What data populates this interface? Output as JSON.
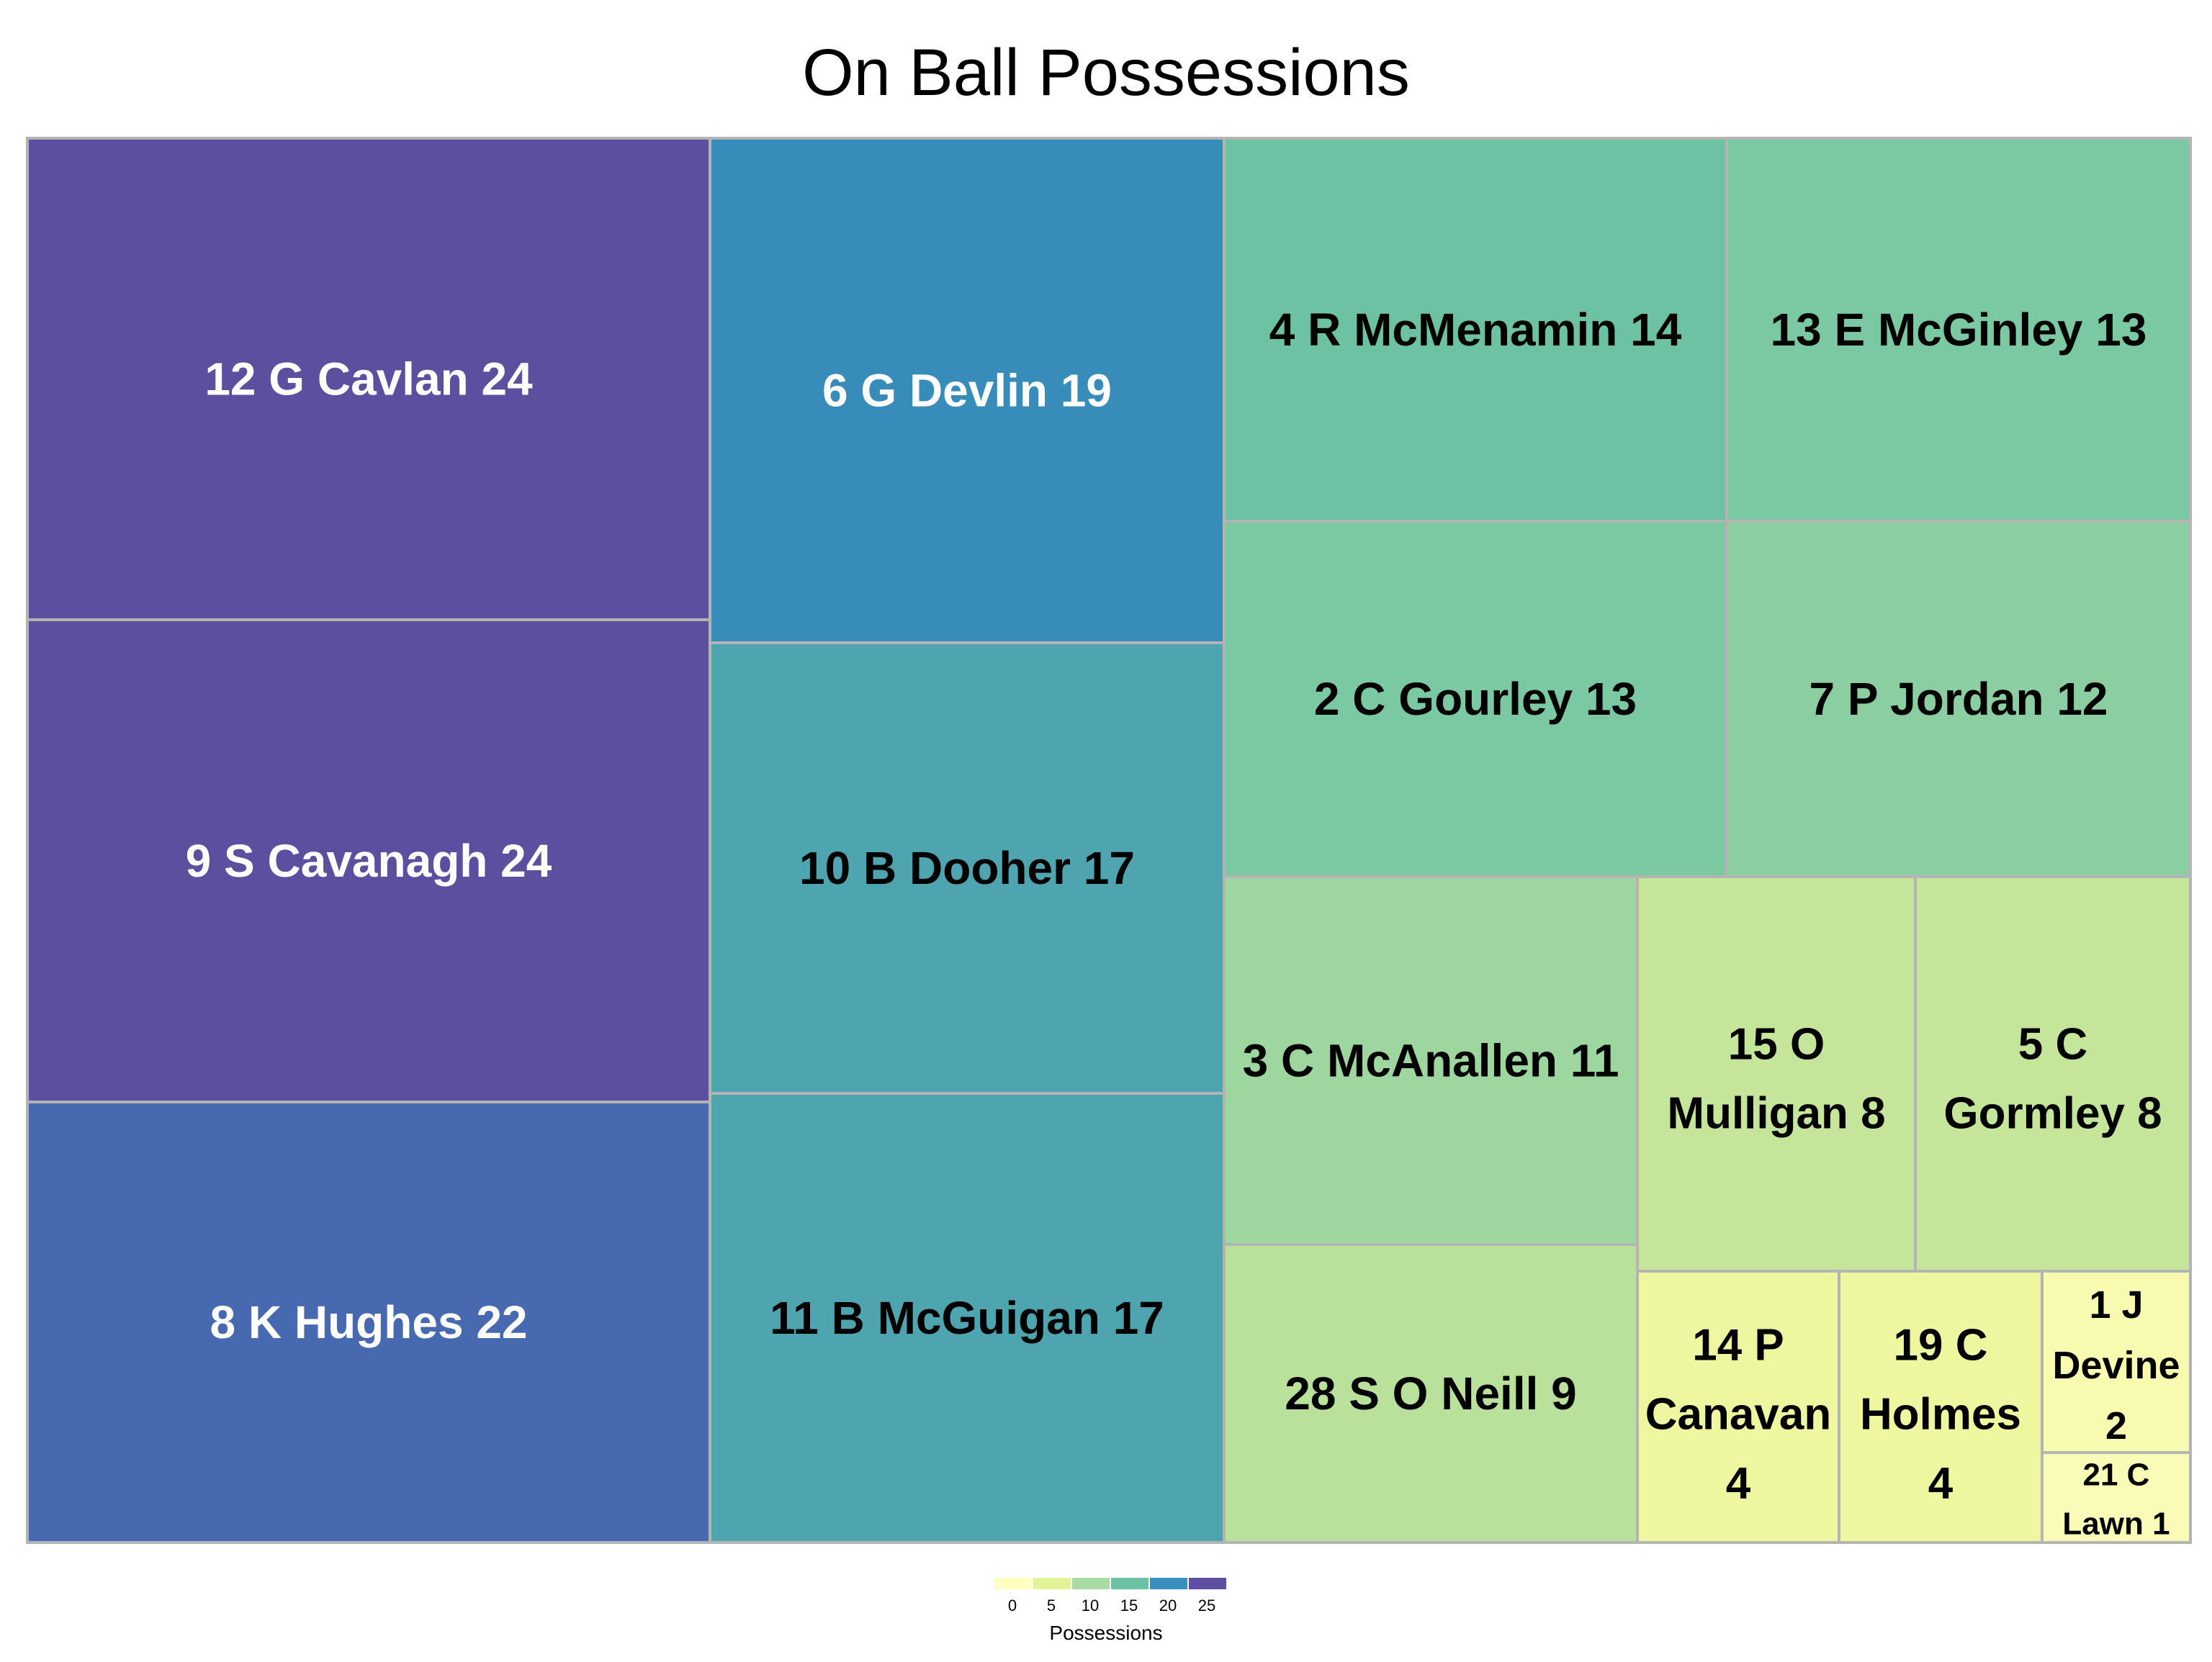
{
  "chart_data": {
    "type": "treemap",
    "title": "On Ball Possessions",
    "legend_title": "Possessions",
    "legend_ticks": [
      "0",
      "5",
      "10",
      "15",
      "20",
      "25"
    ],
    "legend_colors": [
      "#ffffbf",
      "#e3f497",
      "#a8dca4",
      "#6bc2a4",
      "#3b8ec0",
      "#5e4fa2"
    ],
    "items": [
      {
        "label": "12 G Cavlan 24",
        "value": 24,
        "color": "#5d4fa0",
        "text_color": "#ffffff"
      },
      {
        "label": "9 S Cavanagh 24",
        "value": 24,
        "color": "#5d4fa0",
        "text_color": "#ffffff"
      },
      {
        "label": "8 K Hughes 22",
        "value": 22,
        "color": "#4769af",
        "text_color": "#ffffff"
      },
      {
        "label": "6 G Devlin 19",
        "value": 19,
        "color": "#378cba",
        "text_color": "#ffffff"
      },
      {
        "label": "10 B Dooher 17",
        "value": 17,
        "color": "#4ea5b0",
        "text_color": "#000000"
      },
      {
        "label": "11 B McGuigan 17",
        "value": 17,
        "color": "#4ea5b0",
        "text_color": "#000000"
      },
      {
        "label": "4 R McMenamin 14",
        "value": 14,
        "color": "#6dc2a4",
        "text_color": "#000000"
      },
      {
        "label": "13 E McGinley 13",
        "value": 13,
        "color": "#7bc9a3",
        "text_color": "#000000"
      },
      {
        "label": "2 C Gourley 13",
        "value": 13,
        "color": "#7bc9a3",
        "text_color": "#000000"
      },
      {
        "label": "7 P Jordan 12",
        "value": 12,
        "color": "#8acea1",
        "text_color": "#000000"
      },
      {
        "label": "3 C McAnallen 11",
        "value": 11,
        "color": "#9ed69f",
        "text_color": "#000000"
      },
      {
        "label": "15 O Mulligan 8",
        "value": 8,
        "color": "#c5e59b",
        "text_color": "#000000"
      },
      {
        "label": "5 C Gormley 8",
        "value": 8,
        "color": "#c5e59b",
        "text_color": "#000000"
      },
      {
        "label": "28 S O Neill 9",
        "value": 9,
        "color": "#b9e19c",
        "text_color": "#000000"
      },
      {
        "label": "14 P Canavan 4",
        "value": 4,
        "color": "#eef6a0",
        "text_color": "#000000"
      },
      {
        "label": "19 C Holmes 4",
        "value": 4,
        "color": "#eef6a0",
        "text_color": "#000000"
      },
      {
        "label": "1 J Devine 2",
        "value": 2,
        "color": "#f8fab0",
        "text_color": "#000000"
      },
      {
        "label": "21 C Lawn 1",
        "value": 1,
        "color": "#fbfbb8",
        "text_color": "#000000"
      }
    ]
  }
}
